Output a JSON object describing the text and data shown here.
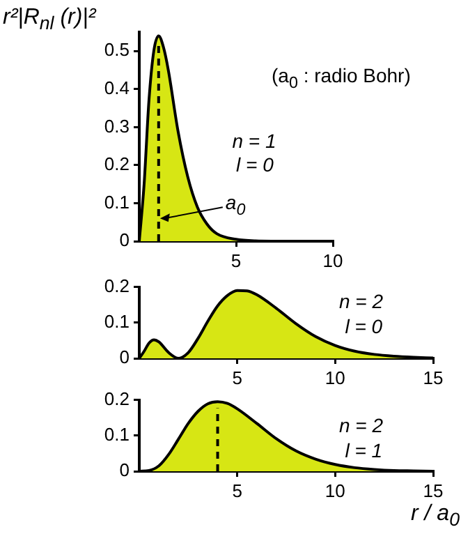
{
  "chart_data": [
    {
      "type": "area",
      "ylabel": "r²|R$_{nl}$ (r)|²",
      "annotations": [
        {
          "text": "a$_{0}$",
          "x": 1,
          "y": 0.06
        },
        "n = 1",
        "l = 0",
        "(a$_{0}$ : radio Bohr)"
      ],
      "x": [
        0,
        0.25,
        0.5,
        0.75,
        1,
        1.25,
        1.5,
        2,
        2.5,
        3,
        3.5,
        4,
        5,
        6,
        8,
        10
      ],
      "values": [
        0,
        0.15,
        0.37,
        0.5,
        0.54,
        0.51,
        0.45,
        0.29,
        0.17,
        0.09,
        0.045,
        0.02,
        0.005,
        0.001,
        0,
        0
      ],
      "color": "#d7e614",
      "xlim": [
        0,
        10
      ],
      "ylim": [
        0,
        0.55
      ],
      "xticks": [
        5,
        10
      ],
      "yticks": [
        0,
        0.1,
        0.2,
        0.3,
        0.4,
        0.5
      ],
      "ref_lines": [
        {
          "axis": "x",
          "value": 1,
          "line_style": "dashed"
        }
      ]
    },
    {
      "type": "area",
      "annotations": [
        "n = 2",
        "l = 0"
      ],
      "x": [
        0,
        0.25,
        0.5,
        0.75,
        1,
        1.5,
        2,
        2.5,
        3,
        3.5,
        4,
        4.5,
        5,
        5.5,
        6,
        7,
        8,
        9,
        10,
        11,
        12,
        13,
        14,
        15
      ],
      "values": [
        0,
        0.02,
        0.043,
        0.052,
        0.046,
        0.016,
        0,
        0.016,
        0.056,
        0.104,
        0.147,
        0.176,
        0.19,
        0.189,
        0.178,
        0.14,
        0.097,
        0.061,
        0.036,
        0.02,
        0.011,
        0.006,
        0.003,
        0.001
      ],
      "color": "#d7e614",
      "xlim": [
        0,
        15
      ],
      "ylim": [
        0,
        0.2
      ],
      "xticks": [
        5,
        10,
        15
      ],
      "yticks": [
        0,
        0.1,
        0.2
      ]
    },
    {
      "type": "area",
      "xlabel": "r / a$_{0}$",
      "annotations": [
        "n = 2",
        "l = 1"
      ],
      "x": [
        0,
        0.5,
        1,
        1.5,
        2,
        2.5,
        3,
        3.5,
        4,
        4.5,
        5,
        6,
        7,
        8,
        9,
        10,
        11,
        12,
        13,
        14,
        15
      ],
      "values": [
        0,
        0.002,
        0.015,
        0.047,
        0.09,
        0.134,
        0.168,
        0.189,
        0.195,
        0.19,
        0.175,
        0.134,
        0.091,
        0.057,
        0.034,
        0.019,
        0.01,
        0.005,
        0.002,
        0.001,
        0
      ],
      "color": "#d7e614",
      "xlim": [
        0,
        15
      ],
      "ylim": [
        0,
        0.2
      ],
      "xticks": [
        5,
        10,
        15
      ],
      "yticks": [
        0,
        0.1,
        0.2
      ],
      "ref_lines": [
        {
          "axis": "x",
          "value": 4,
          "line_style": "dashed"
        }
      ]
    }
  ]
}
